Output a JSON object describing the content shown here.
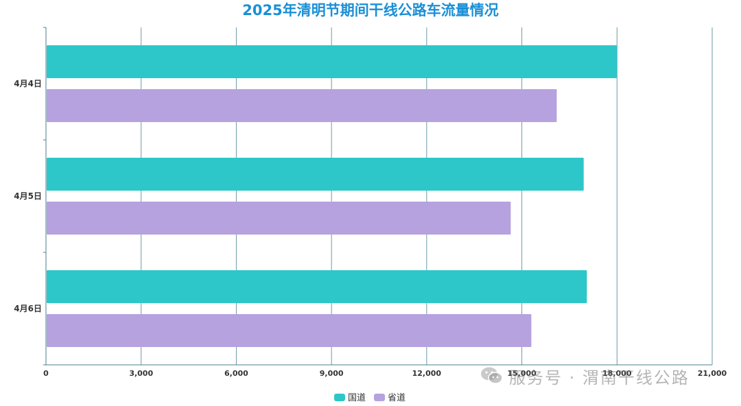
{
  "chart_data": {
    "type": "bar",
    "orientation": "horizontal",
    "title": "2025年清明节期间干线公路车流量情况",
    "categories": [
      "4月4日",
      "4月5日",
      "4月6日"
    ],
    "series": [
      {
        "name": "国道",
        "color": "#2ec7c9",
        "values": [
          18000,
          16950,
          17050
        ]
      },
      {
        "name": "省道",
        "color": "#b6a2de",
        "values": [
          16100,
          14650,
          15300
        ]
      }
    ],
    "xlim": [
      0,
      21000
    ],
    "xticks": [
      0,
      3000,
      6000,
      9000,
      12000,
      15000,
      18000,
      21000
    ],
    "xtick_labels": [
      "0",
      "3,000",
      "6,000",
      "9,000",
      "12,000",
      "15,000",
      "18,000",
      "21,000"
    ],
    "grid": true,
    "legend": "bottom-center"
  },
  "watermark": {
    "text": "服务号 · 渭南干线公路",
    "icon": "wechat-icon"
  }
}
